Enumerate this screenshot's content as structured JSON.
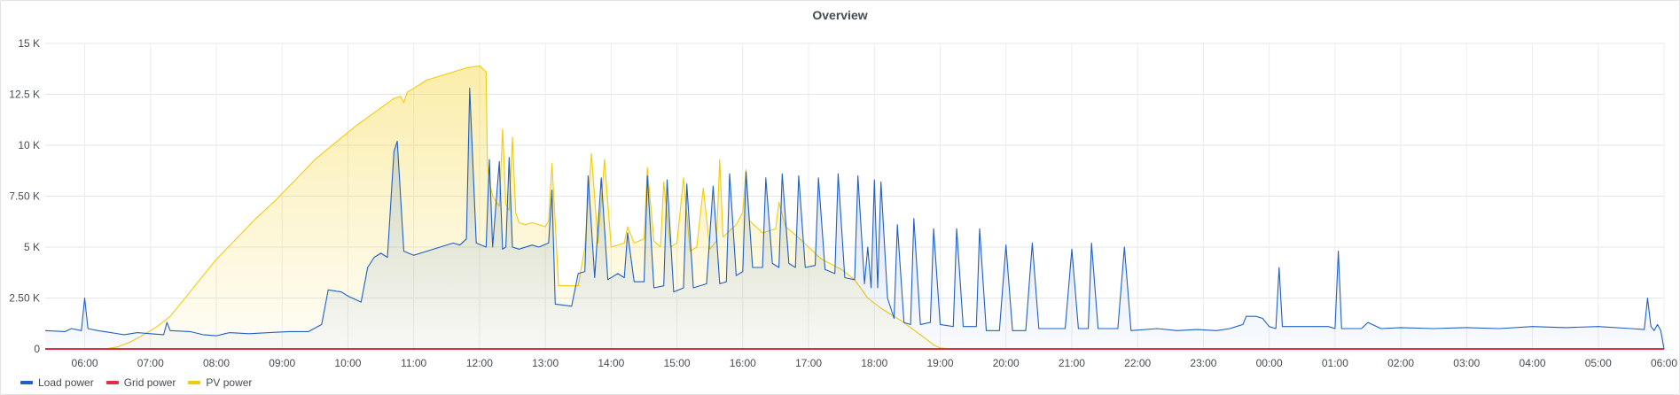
{
  "panel": {
    "title": "Overview"
  },
  "chart_data": {
    "type": "area",
    "title": "Overview",
    "xlabel": "",
    "ylabel": "",
    "ylim": [
      0,
      15000
    ],
    "xlim": [
      5.4,
      30.0
    ],
    "x_unit": "hour of day (values above 24 are the following day)",
    "yticks": [
      {
        "value": 0,
        "label": "0"
      },
      {
        "value": 2500,
        "label": "2.50 K"
      },
      {
        "value": 5000,
        "label": "5 K"
      },
      {
        "value": 7500,
        "label": "7.50 K"
      },
      {
        "value": 10000,
        "label": "10 K"
      },
      {
        "value": 12500,
        "label": "12.5 K"
      },
      {
        "value": 15000,
        "label": "15 K"
      }
    ],
    "xticks": [
      {
        "value": 6,
        "label": "06:00"
      },
      {
        "value": 7,
        "label": "07:00"
      },
      {
        "value": 8,
        "label": "08:00"
      },
      {
        "value": 9,
        "label": "09:00"
      },
      {
        "value": 10,
        "label": "10:00"
      },
      {
        "value": 11,
        "label": "11:00"
      },
      {
        "value": 12,
        "label": "12:00"
      },
      {
        "value": 13,
        "label": "13:00"
      },
      {
        "value": 14,
        "label": "14:00"
      },
      {
        "value": 15,
        "label": "15:00"
      },
      {
        "value": 16,
        "label": "16:00"
      },
      {
        "value": 17,
        "label": "17:00"
      },
      {
        "value": 18,
        "label": "18:00"
      },
      {
        "value": 19,
        "label": "19:00"
      },
      {
        "value": 20,
        "label": "20:00"
      },
      {
        "value": 21,
        "label": "21:00"
      },
      {
        "value": 22,
        "label": "22:00"
      },
      {
        "value": 23,
        "label": "23:00"
      },
      {
        "value": 24,
        "label": "00:00"
      },
      {
        "value": 25,
        "label": "01:00"
      },
      {
        "value": 26,
        "label": "02:00"
      },
      {
        "value": 27,
        "label": "03:00"
      },
      {
        "value": 28,
        "label": "04:00"
      },
      {
        "value": 29,
        "label": "05:00"
      },
      {
        "value": 30,
        "label": "06:00"
      }
    ],
    "grid": true,
    "legend_position": "bottom-left",
    "series": [
      {
        "name": "PV power",
        "color": "#f2cc0c",
        "fill": true,
        "points": [
          [
            5.4,
            0
          ],
          [
            6.0,
            0
          ],
          [
            6.3,
            0
          ],
          [
            6.5,
            100
          ],
          [
            6.7,
            350
          ],
          [
            6.9,
            700
          ],
          [
            7.1,
            1100
          ],
          [
            7.3,
            1600
          ],
          [
            7.5,
            2400
          ],
          [
            7.8,
            3600
          ],
          [
            8.0,
            4400
          ],
          [
            8.3,
            5400
          ],
          [
            8.6,
            6400
          ],
          [
            8.9,
            7300
          ],
          [
            9.2,
            8300
          ],
          [
            9.5,
            9300
          ],
          [
            9.8,
            10100
          ],
          [
            10.1,
            10900
          ],
          [
            10.4,
            11600
          ],
          [
            10.7,
            12300
          ],
          [
            10.8,
            12400
          ],
          [
            10.85,
            12100
          ],
          [
            10.9,
            12600
          ],
          [
            11.2,
            13200
          ],
          [
            11.5,
            13500
          ],
          [
            11.8,
            13800
          ],
          [
            12.0,
            13900
          ],
          [
            12.1,
            13600
          ],
          [
            12.12,
            9000
          ],
          [
            12.15,
            8200
          ],
          [
            12.2,
            7500
          ],
          [
            12.3,
            7000
          ],
          [
            12.35,
            10800
          ],
          [
            12.4,
            7100
          ],
          [
            12.45,
            6800
          ],
          [
            12.5,
            10400
          ],
          [
            12.55,
            6700
          ],
          [
            12.6,
            6200
          ],
          [
            12.7,
            6100
          ],
          [
            12.8,
            6200
          ],
          [
            12.9,
            6100
          ],
          [
            13.0,
            6000
          ],
          [
            13.05,
            6300
          ],
          [
            13.1,
            9100
          ],
          [
            13.15,
            6200
          ],
          [
            13.2,
            3100
          ],
          [
            13.5,
            3100
          ],
          [
            13.6,
            5000
          ],
          [
            13.7,
            9600
          ],
          [
            13.8,
            5200
          ],
          [
            13.9,
            9300
          ],
          [
            14.0,
            5000
          ],
          [
            14.2,
            5200
          ],
          [
            14.25,
            6000
          ],
          [
            14.35,
            5200
          ],
          [
            14.5,
            5400
          ],
          [
            14.55,
            8900
          ],
          [
            14.65,
            5300
          ],
          [
            14.75,
            5000
          ],
          [
            14.8,
            8200
          ],
          [
            14.9,
            5000
          ],
          [
            15.0,
            5200
          ],
          [
            15.1,
            8400
          ],
          [
            15.2,
            4800
          ],
          [
            15.3,
            5000
          ],
          [
            15.4,
            7900
          ],
          [
            15.5,
            4900
          ],
          [
            15.6,
            5300
          ],
          [
            15.65,
            9300
          ],
          [
            15.7,
            5500
          ],
          [
            15.9,
            6100
          ],
          [
            16.0,
            6700
          ],
          [
            16.05,
            8800
          ],
          [
            16.1,
            6300
          ],
          [
            16.3,
            5700
          ],
          [
            16.5,
            5900
          ],
          [
            16.55,
            7200
          ],
          [
            16.65,
            6000
          ],
          [
            16.8,
            5600
          ],
          [
            17.0,
            5000
          ],
          [
            17.2,
            4400
          ],
          [
            17.5,
            3900
          ],
          [
            17.7,
            3400
          ],
          [
            17.9,
            2500
          ],
          [
            18.1,
            2000
          ],
          [
            18.4,
            1400
          ],
          [
            18.7,
            700
          ],
          [
            18.9,
            200
          ],
          [
            19.0,
            50
          ],
          [
            19.2,
            0
          ],
          [
            30.0,
            0
          ]
        ]
      },
      {
        "name": "Load power",
        "color": "#1f60c4",
        "fill": true,
        "points": [
          [
            5.4,
            900
          ],
          [
            5.7,
            850
          ],
          [
            5.8,
            1000
          ],
          [
            5.95,
            900
          ],
          [
            6.0,
            2500
          ],
          [
            6.05,
            1000
          ],
          [
            6.2,
            900
          ],
          [
            6.4,
            800
          ],
          [
            6.6,
            700
          ],
          [
            6.8,
            800
          ],
          [
            7.0,
            750
          ],
          [
            7.2,
            700
          ],
          [
            7.25,
            1300
          ],
          [
            7.3,
            900
          ],
          [
            7.6,
            850
          ],
          [
            7.8,
            700
          ],
          [
            8.0,
            650
          ],
          [
            8.2,
            800
          ],
          [
            8.5,
            750
          ],
          [
            8.8,
            800
          ],
          [
            9.1,
            850
          ],
          [
            9.4,
            850
          ],
          [
            9.6,
            1200
          ],
          [
            9.7,
            2900
          ],
          [
            9.9,
            2800
          ],
          [
            10.0,
            2600
          ],
          [
            10.2,
            2300
          ],
          [
            10.3,
            4000
          ],
          [
            10.4,
            4500
          ],
          [
            10.5,
            4700
          ],
          [
            10.6,
            4500
          ],
          [
            10.7,
            9700
          ],
          [
            10.75,
            10200
          ],
          [
            10.85,
            4800
          ],
          [
            11.0,
            4600
          ],
          [
            11.2,
            4800
          ],
          [
            11.4,
            5000
          ],
          [
            11.6,
            5200
          ],
          [
            11.7,
            5100
          ],
          [
            11.8,
            5400
          ],
          [
            11.85,
            12800
          ],
          [
            11.95,
            5200
          ],
          [
            12.1,
            5000
          ],
          [
            12.15,
            9300
          ],
          [
            12.2,
            5000
          ],
          [
            12.3,
            9200
          ],
          [
            12.35,
            4900
          ],
          [
            12.4,
            5000
          ],
          [
            12.45,
            9400
          ],
          [
            12.5,
            5000
          ],
          [
            12.6,
            4900
          ],
          [
            12.8,
            5100
          ],
          [
            12.9,
            5000
          ],
          [
            13.05,
            5200
          ],
          [
            13.1,
            7800
          ],
          [
            13.15,
            2200
          ],
          [
            13.4,
            2100
          ],
          [
            13.5,
            3700
          ],
          [
            13.6,
            3800
          ],
          [
            13.65,
            8500
          ],
          [
            13.75,
            3500
          ],
          [
            13.85,
            8400
          ],
          [
            13.95,
            3400
          ],
          [
            14.1,
            3700
          ],
          [
            14.2,
            3500
          ],
          [
            14.25,
            5700
          ],
          [
            14.35,
            3300
          ],
          [
            14.5,
            3300
          ],
          [
            14.55,
            8500
          ],
          [
            14.65,
            3000
          ],
          [
            14.8,
            3100
          ],
          [
            14.85,
            8300
          ],
          [
            14.95,
            2800
          ],
          [
            15.1,
            3000
          ],
          [
            15.15,
            8100
          ],
          [
            15.25,
            3000
          ],
          [
            15.45,
            3200
          ],
          [
            15.55,
            8000
          ],
          [
            15.65,
            3200
          ],
          [
            15.75,
            3300
          ],
          [
            15.8,
            8600
          ],
          [
            15.9,
            3600
          ],
          [
            16.0,
            3800
          ],
          [
            16.05,
            8700
          ],
          [
            16.15,
            4000
          ],
          [
            16.3,
            4000
          ],
          [
            16.35,
            8400
          ],
          [
            16.45,
            4200
          ],
          [
            16.55,
            4000
          ],
          [
            16.6,
            8600
          ],
          [
            16.7,
            4200
          ],
          [
            16.8,
            4000
          ],
          [
            16.85,
            8500
          ],
          [
            16.95,
            4000
          ],
          [
            17.1,
            4100
          ],
          [
            17.15,
            8400
          ],
          [
            17.25,
            3900
          ],
          [
            17.4,
            3700
          ],
          [
            17.45,
            8600
          ],
          [
            17.55,
            3500
          ],
          [
            17.7,
            3400
          ],
          [
            17.75,
            8500
          ],
          [
            17.85,
            3200
          ],
          [
            17.9,
            5000
          ],
          [
            17.95,
            3000
          ],
          [
            18.0,
            8300
          ],
          [
            18.05,
            3000
          ],
          [
            18.1,
            8200
          ],
          [
            18.2,
            2500
          ],
          [
            18.3,
            1500
          ],
          [
            18.35,
            6100
          ],
          [
            18.45,
            1300
          ],
          [
            18.55,
            1200
          ],
          [
            18.6,
            6400
          ],
          [
            18.7,
            1200
          ],
          [
            18.85,
            1300
          ],
          [
            18.9,
            5900
          ],
          [
            19.0,
            1200
          ],
          [
            19.2,
            1100
          ],
          [
            19.25,
            5900
          ],
          [
            19.35,
            1100
          ],
          [
            19.55,
            1100
          ],
          [
            19.6,
            5900
          ],
          [
            19.7,
            900
          ],
          [
            19.9,
            900
          ],
          [
            20.0,
            5100
          ],
          [
            20.1,
            900
          ],
          [
            20.3,
            900
          ],
          [
            20.4,
            5200
          ],
          [
            20.5,
            1000
          ],
          [
            20.9,
            1000
          ],
          [
            21.0,
            4900
          ],
          [
            21.1,
            1000
          ],
          [
            21.25,
            1000
          ],
          [
            21.3,
            5200
          ],
          [
            21.4,
            1000
          ],
          [
            21.7,
            1000
          ],
          [
            21.8,
            5000
          ],
          [
            21.9,
            900
          ],
          [
            22.3,
            1000
          ],
          [
            22.6,
            900
          ],
          [
            22.9,
            950
          ],
          [
            23.2,
            900
          ],
          [
            23.4,
            1000
          ],
          [
            23.6,
            1200
          ],
          [
            23.65,
            1600
          ],
          [
            23.8,
            1600
          ],
          [
            23.9,
            1500
          ],
          [
            24.0,
            1100
          ],
          [
            24.1,
            1000
          ],
          [
            24.15,
            4000
          ],
          [
            24.2,
            1100
          ],
          [
            24.6,
            1100
          ],
          [
            24.9,
            1100
          ],
          [
            25.0,
            1000
          ],
          [
            25.05,
            4800
          ],
          [
            25.1,
            1000
          ],
          [
            25.4,
            1000
          ],
          [
            25.5,
            1300
          ],
          [
            25.7,
            1000
          ],
          [
            26.0,
            1050
          ],
          [
            26.5,
            1000
          ],
          [
            27.0,
            1050
          ],
          [
            27.5,
            1000
          ],
          [
            28.0,
            1100
          ],
          [
            28.5,
            1050
          ],
          [
            29.0,
            1100
          ],
          [
            29.5,
            1000
          ],
          [
            29.7,
            950
          ],
          [
            29.75,
            2500
          ],
          [
            29.8,
            1100
          ],
          [
            29.85,
            900
          ],
          [
            29.9,
            1200
          ],
          [
            29.95,
            900
          ],
          [
            30.0,
            0
          ]
        ]
      },
      {
        "name": "Grid power",
        "color": "#e02f44",
        "fill": false,
        "points": [
          [
            5.4,
            0
          ],
          [
            30.0,
            0
          ]
        ]
      }
    ],
    "legend": [
      "Load power",
      "Grid power",
      "PV power"
    ]
  }
}
